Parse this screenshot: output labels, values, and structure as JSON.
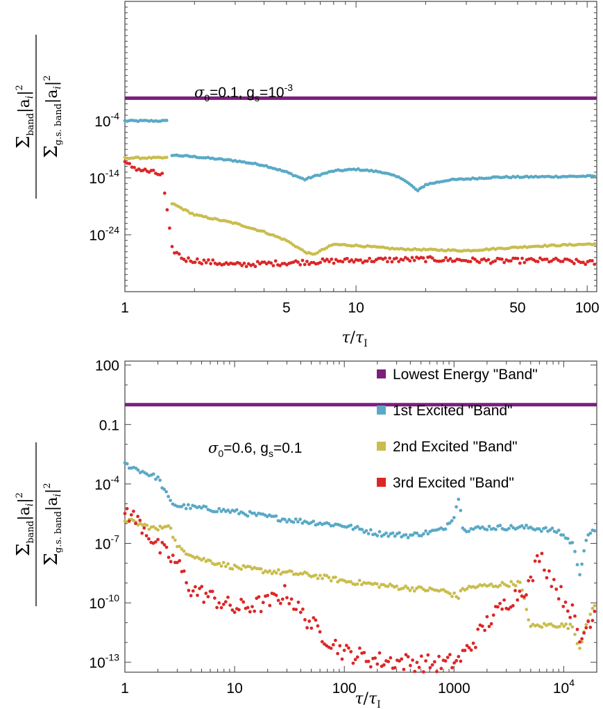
{
  "colors": {
    "Lowest Energy \"Band\"": "#7b1f7d",
    "1st Excited \"Band\"": "#5aa9c6",
    "2nd Excited \"Band\"": "#c9bd4e",
    "3rd Excited \"Band\"": "#dc2626"
  },
  "y_label": {
    "num_prefix": "Σ",
    "num_sub": "band",
    "num_body": "|a",
    "num_i": "i",
    "num_tail": "|",
    "num_sup": "2",
    "den_prefix": "Σ",
    "den_sub": "g.s. band",
    "den_body": "|a",
    "den_i": "i",
    "den_tail": "|",
    "den_sup": "2"
  },
  "chart_data": [
    {
      "type": "scatter",
      "x_scale": "log",
      "y_scale": "log",
      "xlim": [
        1,
        110
      ],
      "ylim_exp": [
        -34,
        17
      ],
      "xticks": [
        {
          "value": 1,
          "label": "1"
        },
        {
          "value": 5,
          "label": "5"
        },
        {
          "value": 10,
          "label": "10"
        },
        {
          "value": 50,
          "label": "50"
        },
        {
          "value": 100,
          "label": "100"
        }
      ],
      "yticks": [
        {
          "exp": -4,
          "mant": "10",
          "sup": "-4"
        },
        {
          "exp": -14,
          "mant": "10",
          "sup": "-14"
        },
        {
          "exp": -24,
          "mant": "10",
          "sup": "-24"
        }
      ],
      "xlabel": {
        "tau": "τ",
        "sep": "/",
        "tau2": "τ",
        "sub": "I"
      },
      "annotation": {
        "sigma": "σ",
        "sigma_sub": "0",
        "text1": "=0.1, g",
        "gs_sub": "s",
        "text2": "=10",
        "sup": "-3"
      },
      "series": [
        {
          "name": "Lowest Energy \"Band\"",
          "points": [
            [
              1,
              0
            ],
            [
              1.6,
              0
            ],
            [
              5,
              0
            ],
            [
              20,
              0
            ],
            [
              110,
              0
            ]
          ]
        },
        {
          "name": "1st Excited \"Band\"",
          "points": [
            [
              1,
              -4
            ],
            [
              1.55,
              -4
            ],
            [
              1.6,
              -10
            ],
            [
              2,
              -10.3
            ],
            [
              3,
              -11
            ],
            [
              4,
              -11.8
            ],
            [
              5,
              -13
            ],
            [
              6,
              -14.3
            ],
            [
              6.5,
              -13.8
            ],
            [
              8,
              -12.8
            ],
            [
              10,
              -12.5
            ],
            [
              13,
              -13
            ],
            [
              16,
              -14.2
            ],
            [
              18.5,
              -16.3
            ],
            [
              20,
              -15.2
            ],
            [
              25,
              -14.4
            ],
            [
              40,
              -13.9
            ],
            [
              70,
              -13.8
            ],
            [
              110,
              -13.7
            ]
          ]
        },
        {
          "name": "2nd Excited \"Band\"",
          "points": [
            [
              1,
              -10.5
            ],
            [
              1.55,
              -10.5
            ],
            [
              1.6,
              -18.5
            ],
            [
              2,
              -20.5
            ],
            [
              3,
              -22
            ],
            [
              4,
              -23.5
            ],
            [
              5,
              -25
            ],
            [
              6,
              -27
            ],
            [
              6.5,
              -27.5
            ],
            [
              8,
              -25.7
            ],
            [
              10,
              -25.9
            ],
            [
              15,
              -26.5
            ],
            [
              30,
              -26.8
            ],
            [
              60,
              -26
            ],
            [
              110,
              -25.6
            ]
          ]
        },
        {
          "name": "3rd Excited \"Band\"",
          "points": [
            [
              1,
              -11.5
            ],
            [
              1.15,
              -12.5
            ],
            [
              1.3,
              -13
            ],
            [
              1.45,
              -13.5
            ],
            [
              1.6,
              -26.5
            ],
            [
              1.8,
              -28.3
            ],
            [
              3,
              -29.3
            ],
            [
              6,
              -28.8
            ],
            [
              10,
              -28.5
            ],
            [
              20,
              -28.3
            ],
            [
              40,
              -28.6
            ],
            [
              70,
              -28.5
            ],
            [
              110,
              -29
            ]
          ]
        }
      ]
    },
    {
      "type": "scatter",
      "x_scale": "log",
      "y_scale": "log",
      "xlim": [
        1,
        20000
      ],
      "ylim_exp": [
        -13.5,
        2.2
      ],
      "xticks": [
        {
          "value": 1,
          "mant": "1",
          "sup": ""
        },
        {
          "value": 10,
          "mant": "10",
          "sup": ""
        },
        {
          "value": 100,
          "mant": "100",
          "sup": ""
        },
        {
          "value": 1000,
          "mant": "1000",
          "sup": ""
        },
        {
          "value": 10000,
          "mant": "10",
          "sup": "4"
        }
      ],
      "yticks": [
        {
          "exp": 2,
          "mant": "100",
          "sup": ""
        },
        {
          "exp": -1,
          "mant": "0.1",
          "sup": ""
        },
        {
          "exp": -4,
          "mant": "10",
          "sup": "-4"
        },
        {
          "exp": -7,
          "mant": "10",
          "sup": "-7"
        },
        {
          "exp": -10,
          "mant": "10",
          "sup": "-10"
        },
        {
          "exp": -13,
          "mant": "10",
          "sup": "-13"
        }
      ],
      "xlabel": {
        "tau": "τ",
        "sep": "/",
        "tau2": "τ",
        "sub": "I"
      },
      "annotation": {
        "sigma": "σ",
        "sigma_sub": "0",
        "text1": "=0.6, g",
        "gs_sub": "s",
        "text2": "=0.1",
        "sup": ""
      },
      "legend": {
        "placement": "top-right",
        "entries": [
          "Lowest Energy \"Band\"",
          "1st Excited \"Band\"",
          "2nd Excited \"Band\"",
          "3rd Excited \"Band\""
        ]
      },
      "series": [
        {
          "name": "Lowest Energy \"Band\"",
          "points": [
            [
              1,
              0
            ],
            [
              10,
              0
            ],
            [
              100,
              0
            ],
            [
              1000,
              0
            ],
            [
              20000,
              0
            ]
          ]
        },
        {
          "name": "1st Excited \"Band\"",
          "points": [
            [
              1,
              -3
            ],
            [
              2,
              -3.7
            ],
            [
              2.6,
              -4.9
            ],
            [
              3,
              -5.1
            ],
            [
              10,
              -5.4
            ],
            [
              30,
              -5.8
            ],
            [
              100,
              -6.1
            ],
            [
              200,
              -6.5
            ],
            [
              400,
              -6.6
            ],
            [
              800,
              -6.3
            ],
            [
              1000,
              -5.6
            ],
            [
              1100,
              -4.7
            ],
            [
              1200,
              -6.1
            ],
            [
              1300,
              -6.3
            ],
            [
              2000,
              -6.2
            ],
            [
              5000,
              -6.2
            ],
            [
              9000,
              -6.4
            ],
            [
              12000,
              -7
            ],
            [
              14000,
              -8.5
            ],
            [
              16000,
              -6.8
            ],
            [
              20000,
              -6.2
            ]
          ]
        },
        {
          "name": "2nd Excited \"Band\"",
          "points": [
            [
              1,
              -5.8
            ],
            [
              2,
              -6.3
            ],
            [
              2.5,
              -6
            ],
            [
              3,
              -7.2
            ],
            [
              5,
              -7.8
            ],
            [
              10,
              -8.2
            ],
            [
              20,
              -8.4
            ],
            [
              50,
              -8.6
            ],
            [
              100,
              -8.9
            ],
            [
              300,
              -9.2
            ],
            [
              800,
              -9.4
            ],
            [
              1100,
              -9.7
            ],
            [
              1200,
              -9.3
            ],
            [
              1500,
              -9.2
            ],
            [
              4000,
              -9
            ],
            [
              5000,
              -11.2
            ],
            [
              8000,
              -11.1
            ],
            [
              12000,
              -11.2
            ],
            [
              14000,
              -12.3
            ],
            [
              16000,
              -11
            ],
            [
              20000,
              -10
            ]
          ]
        },
        {
          "name": "3rd Excited \"Band\"",
          "points": [
            [
              1,
              -5.3
            ],
            [
              1.5,
              -6.2
            ],
            [
              2,
              -7.2
            ],
            [
              3,
              -8
            ],
            [
              4,
              -9.3
            ],
            [
              6,
              -9.7
            ],
            [
              10,
              -10.3
            ],
            [
              20,
              -10
            ],
            [
              30,
              -9.5
            ],
            [
              40,
              -10.5
            ],
            [
              60,
              -11.5
            ],
            [
              100,
              -12.5
            ],
            [
              200,
              -12.9
            ],
            [
              400,
              -13
            ],
            [
              800,
              -13.1
            ],
            [
              1100,
              -12.9
            ],
            [
              1500,
              -12
            ],
            [
              2000,
              -11
            ],
            [
              3000,
              -10
            ],
            [
              5000,
              -9
            ],
            [
              6000,
              -7.5
            ],
            [
              7000,
              -8.3
            ],
            [
              9000,
              -9.4
            ],
            [
              12000,
              -10.5
            ],
            [
              14000,
              -12
            ],
            [
              16000,
              -11.2
            ],
            [
              20000,
              -10.2
            ]
          ]
        }
      ]
    }
  ]
}
